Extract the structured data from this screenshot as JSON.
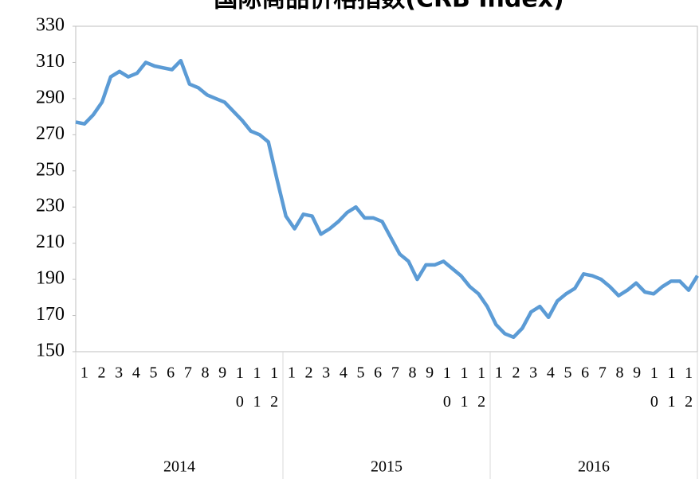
{
  "chart_data": {
    "type": "line",
    "title": "国际商品价格指数(CRB Index)",
    "groups": [
      "2014",
      "2015",
      "2016"
    ],
    "categories": [
      "1",
      null,
      "2",
      null,
      "3",
      null,
      "4",
      null,
      "5",
      null,
      "6",
      null,
      "7",
      null,
      "8",
      null,
      "9",
      null,
      "10",
      null,
      "11",
      null,
      "12",
      null,
      "1",
      null,
      "2",
      null,
      "3",
      null,
      "4",
      null,
      "5",
      null,
      "6",
      null,
      "7",
      null,
      "8",
      null,
      "9",
      null,
      "10",
      null,
      "11",
      null,
      "12",
      null,
      "1",
      null,
      "2",
      null,
      "3",
      null,
      "4",
      null,
      "5",
      null,
      "6",
      null,
      "7",
      null,
      "8",
      null,
      "9",
      null,
      "10",
      null,
      "11",
      null,
      "12",
      null
    ],
    "series": [
      {
        "color": "#5b9bd5",
        "values": [
          277,
          276,
          281,
          288,
          302,
          305,
          302,
          304,
          310,
          308,
          307,
          306,
          311,
          298,
          296,
          292,
          290,
          288,
          283,
          278,
          272,
          270,
          266,
          245,
          225,
          218,
          226,
          225,
          215,
          218,
          222,
          227,
          230,
          224,
          224,
          222,
          213,
          204,
          200,
          190,
          198,
          198,
          200,
          196,
          192,
          186,
          182,
          175,
          165,
          160,
          158,
          163,
          172,
          175,
          169,
          178,
          182,
          185,
          193,
          192,
          190,
          186,
          181,
          184,
          188,
          183,
          182,
          186,
          189,
          189,
          184,
          192
        ]
      }
    ],
    "ylim": [
      150,
      330
    ],
    "yticks": [
      150,
      170,
      190,
      210,
      230,
      250,
      270,
      290,
      310,
      330
    ]
  }
}
